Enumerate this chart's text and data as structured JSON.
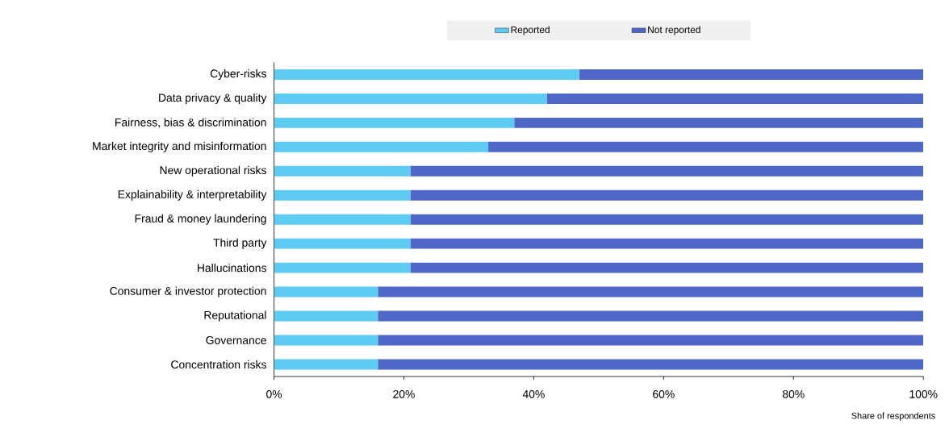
{
  "chart_data": {
    "type": "bar",
    "orientation": "horizontal",
    "stacked": true,
    "legend": "top",
    "xlabel": "Share of respondents",
    "categories": [
      "Cyber-risks",
      "Data privacy & quality",
      "Fairness, bias & discrimination",
      "Market integrity and misinformation",
      "New operational risks",
      "Explainability & interpretability",
      "Fraud & money laundering",
      "Third party",
      "Hallucinations",
      "Consumer & investor protection",
      "Reputational",
      "Governance",
      "Concentration risks"
    ],
    "series": [
      {
        "name": "Reported",
        "color": "#5ecbf2",
        "values": [
          47,
          42,
          37,
          33,
          21,
          21,
          21,
          21,
          21,
          16,
          16,
          16,
          16
        ]
      },
      {
        "name": "Not reported",
        "color": "#4f68c8",
        "values": [
          53,
          58,
          63,
          67,
          79,
          79,
          79,
          79,
          79,
          84,
          84,
          84,
          84
        ]
      }
    ],
    "xlim": [
      0,
      100
    ],
    "xticks": [
      {
        "value": 0,
        "label": "0%"
      },
      {
        "value": 20,
        "label": "20%"
      },
      {
        "value": 40,
        "label": "40%"
      },
      {
        "value": 60,
        "label": "60%"
      },
      {
        "value": 80,
        "label": "80%"
      },
      {
        "value": 100,
        "label": "100%"
      }
    ]
  }
}
